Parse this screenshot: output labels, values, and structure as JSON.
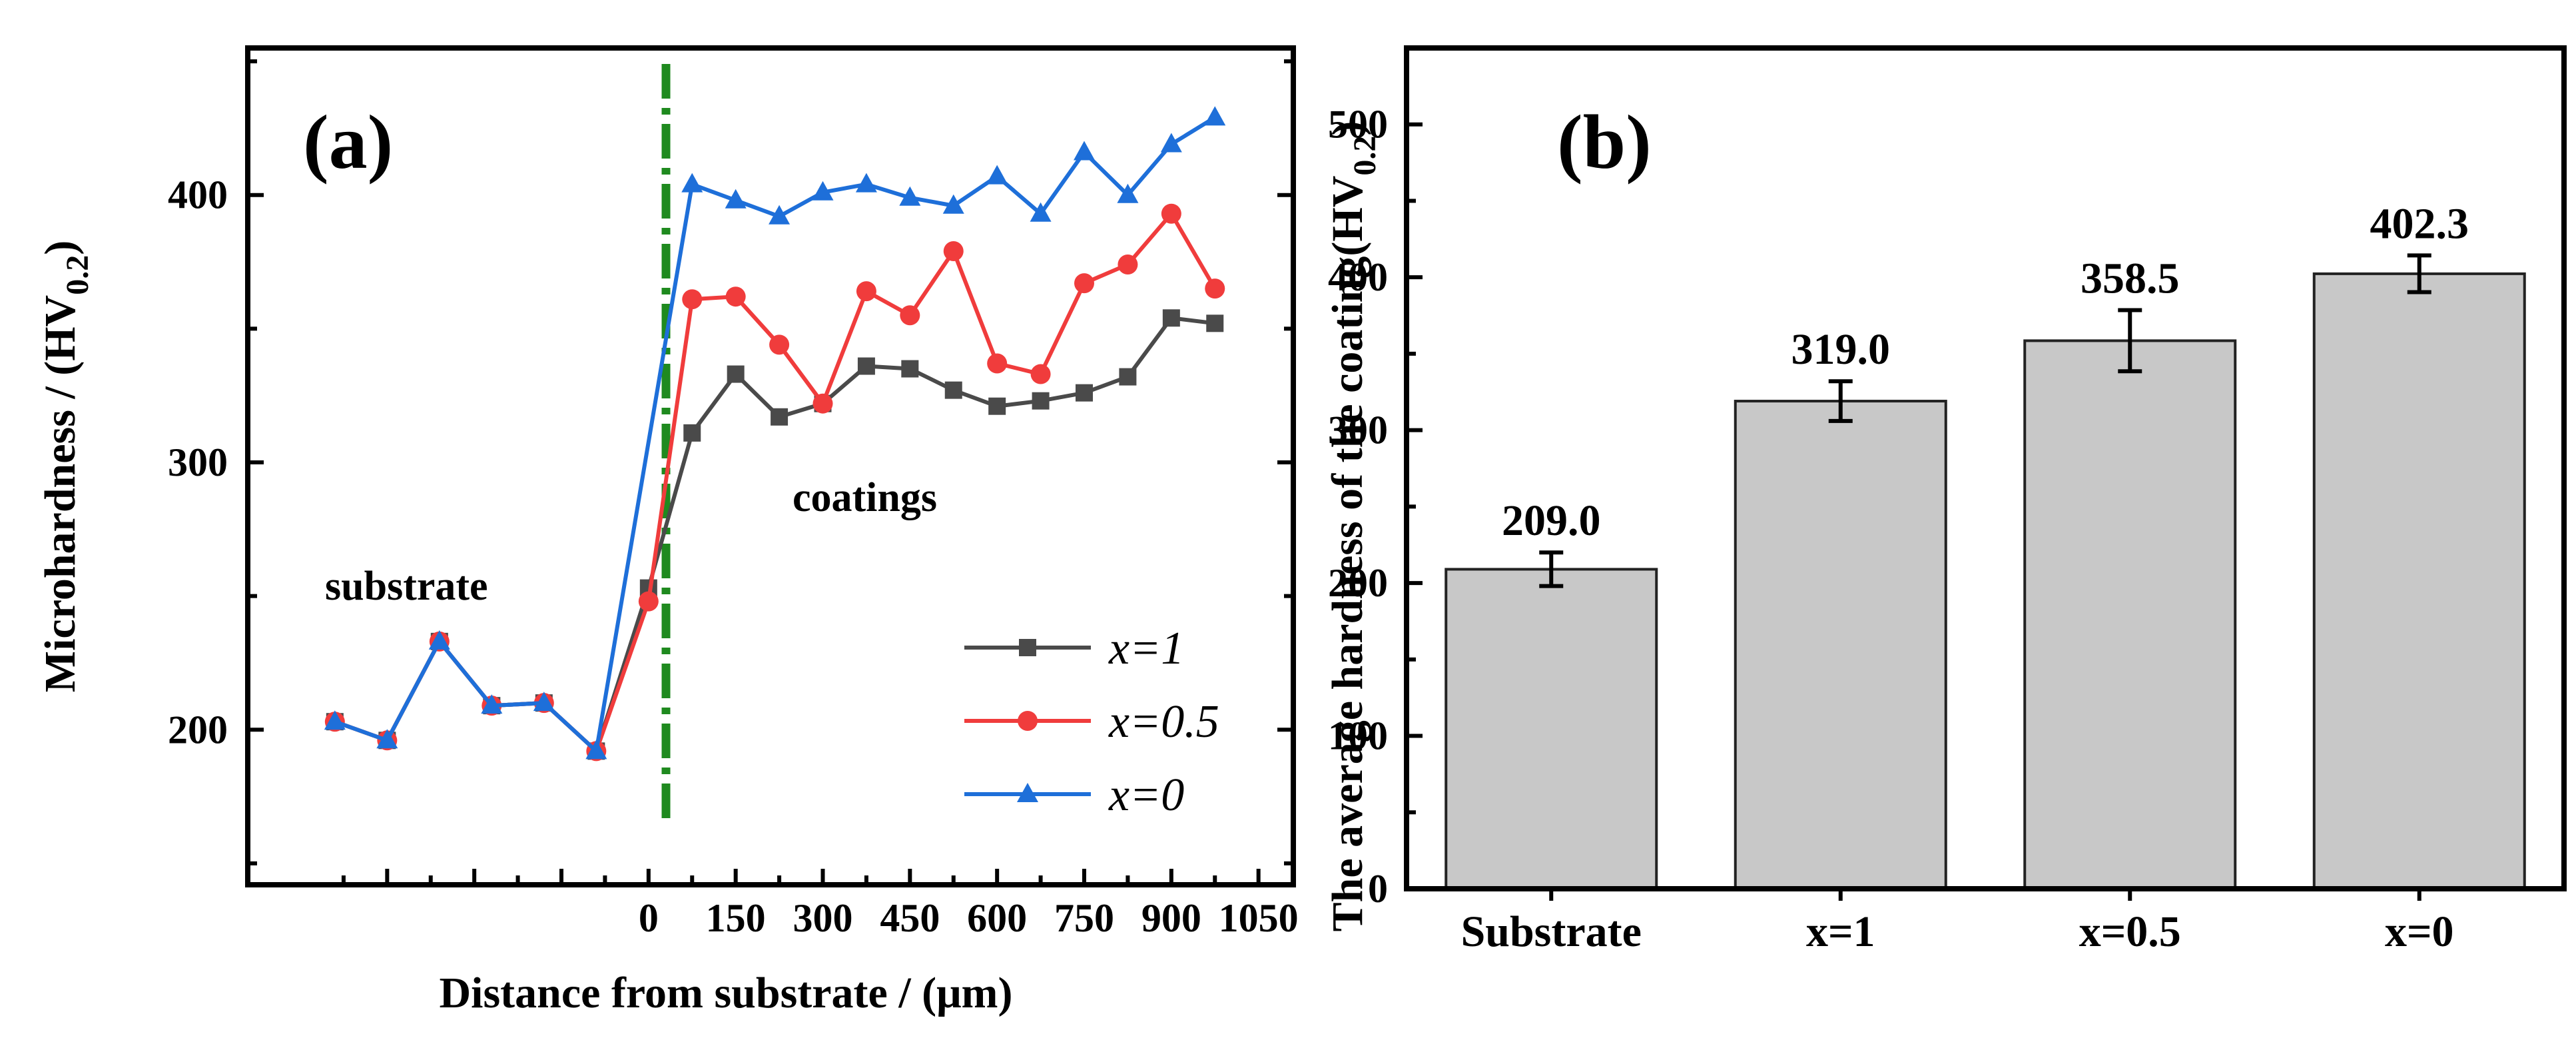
{
  "chart_data": [
    {
      "type": "line",
      "panel_label": "(a)",
      "xlabel": "Distance from substrate / (μm)",
      "ylabel_main": "Microhardness / (HV",
      "ylabel_sub": "0.2",
      "ylabel_close": ")",
      "ylim": [
        142,
        455
      ],
      "xlim": [
        -690,
        1110
      ],
      "yticks": [
        200,
        300,
        400
      ],
      "xticks": [
        0,
        150,
        300,
        450,
        600,
        750,
        900,
        1050
      ],
      "interface_x": 30,
      "annotations": {
        "substrate": "substrate",
        "coatings": "coatings"
      },
      "series": [
        {
          "name": "x=1",
          "color": "#4a4a4a",
          "marker": "square",
          "x": [
            -540,
            -450,
            -360,
            -270,
            -180,
            -90,
            0,
            75,
            150,
            225,
            300,
            375,
            450,
            525,
            600,
            675,
            750,
            825,
            900,
            975
          ],
          "y": [
            203,
            196,
            233,
            209,
            210,
            192,
            253,
            311,
            333,
            317,
            322,
            336,
            335,
            327,
            321,
            323,
            326,
            332,
            354,
            352
          ]
        },
        {
          "name": "x=0.5",
          "color": "#f03c3c",
          "marker": "circle",
          "x": [
            -540,
            -450,
            -360,
            -270,
            -180,
            -90,
            0,
            75,
            150,
            225,
            300,
            375,
            450,
            525,
            600,
            675,
            750,
            825,
            900,
            975
          ],
          "y": [
            203,
            196,
            233,
            209,
            210,
            192,
            248,
            361,
            362,
            344,
            322,
            364,
            355,
            379,
            337,
            333,
            367,
            374,
            393,
            365
          ]
        },
        {
          "name": "x=0",
          "color": "#1e6fd9",
          "marker": "triangle",
          "x": [
            -540,
            -450,
            -360,
            -270,
            -180,
            -90,
            75,
            150,
            225,
            300,
            375,
            450,
            525,
            600,
            675,
            750,
            825,
            900,
            975
          ],
          "y": [
            203,
            196,
            233,
            209,
            210,
            192,
            404,
            398,
            392,
            401,
            404,
            399,
            396,
            407,
            393,
            416,
            400,
            419,
            429
          ]
        }
      ]
    },
    {
      "type": "bar",
      "panel_label": "(b)",
      "ylabel_main": "The average hardness of the coating(HV",
      "ylabel_sub": "0.2",
      "ylabel_close": ")",
      "ylim": [
        0,
        550
      ],
      "yticks": [
        0,
        100,
        200,
        300,
        400,
        500
      ],
      "categories": [
        "Substrate",
        "x=1",
        "x=0.5",
        "x=0"
      ],
      "values": [
        209.0,
        319.0,
        358.5,
        402.3
      ],
      "value_labels": [
        "209.0",
        "319.0",
        "358.5",
        "402.3"
      ],
      "errors": [
        11,
        13,
        20,
        12
      ],
      "bar_color": "#c8c8c8"
    }
  ]
}
